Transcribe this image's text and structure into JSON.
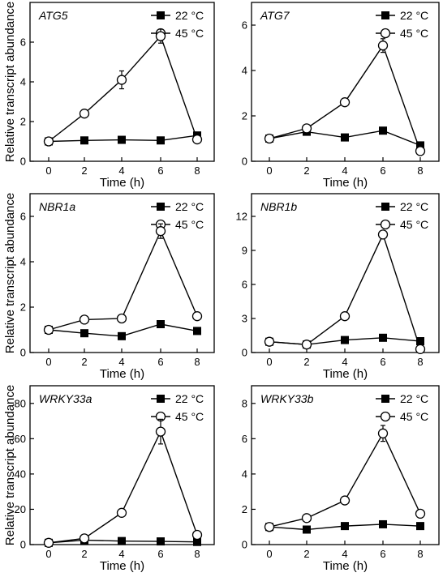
{
  "chart_data": [
    {
      "type": "line",
      "gene": "ATG5",
      "xlabel": "Time (h)",
      "ylabel": "Relative transcript abundance",
      "x": [
        0,
        2,
        4,
        6,
        8
      ],
      "xticks": [
        "0",
        "2",
        "4",
        "6",
        "8"
      ],
      "ylim": [
        0,
        8
      ],
      "yticks": [
        "0",
        "2",
        "4",
        "6"
      ],
      "ytick_values": [
        0,
        2,
        4,
        6
      ],
      "legend_position": "top-right",
      "series": [
        {
          "name": "22 °C",
          "marker": "filled-square",
          "values": [
            1.0,
            1.05,
            1.08,
            1.05,
            1.3
          ],
          "errors": [
            0.05,
            0.05,
            0.06,
            0.05,
            0.08
          ]
        },
        {
          "name": "45 °C",
          "marker": "open-circle",
          "values": [
            1.0,
            2.4,
            4.1,
            6.3,
            1.1
          ],
          "errors": [
            0.08,
            0.1,
            0.45,
            0.35,
            0.1
          ]
        }
      ]
    },
    {
      "type": "line",
      "gene": "ATG7",
      "xlabel": "Time (h)",
      "ylabel": "",
      "x": [
        0,
        2,
        4,
        6,
        8
      ],
      "xticks": [
        "0",
        "2",
        "4",
        "6",
        "8"
      ],
      "ylim": [
        0,
        7
      ],
      "yticks": [
        "0",
        "2",
        "4",
        "6"
      ],
      "ytick_values": [
        0,
        2,
        4,
        6
      ],
      "legend_position": "top-right",
      "series": [
        {
          "name": "22 °C",
          "marker": "filled-square",
          "values": [
            1.0,
            1.3,
            1.05,
            1.35,
            0.7
          ],
          "errors": [
            0.05,
            0.06,
            0.05,
            0.06,
            0.05
          ]
        },
        {
          "name": "45 °C",
          "marker": "open-circle",
          "values": [
            1.0,
            1.45,
            2.6,
            5.1,
            0.45
          ],
          "errors": [
            0.08,
            0.08,
            0.12,
            0.3,
            0.05
          ]
        }
      ]
    },
    {
      "type": "line",
      "gene": "NBR1a",
      "xlabel": "Time (h)",
      "ylabel": "Relative transcript abundance",
      "x": [
        0,
        2,
        4,
        6,
        8
      ],
      "xticks": [
        "0",
        "2",
        "4",
        "6",
        "8"
      ],
      "ylim": [
        0,
        7
      ],
      "yticks": [
        "0",
        "2",
        "4",
        "6"
      ],
      "ytick_values": [
        0,
        2,
        4,
        6
      ],
      "legend_position": "top-right",
      "series": [
        {
          "name": "22 °C",
          "marker": "filled-square",
          "values": [
            1.0,
            0.85,
            0.72,
            1.25,
            0.95
          ],
          "errors": [
            0.05,
            0.05,
            0.05,
            0.06,
            0.05
          ]
        },
        {
          "name": "45 °C",
          "marker": "open-circle",
          "values": [
            1.0,
            1.45,
            1.5,
            5.35,
            1.6
          ],
          "errors": [
            0.08,
            0.1,
            0.08,
            0.32,
            0.12
          ]
        }
      ]
    },
    {
      "type": "line",
      "gene": "NBR1b",
      "xlabel": "Time (h)",
      "ylabel": "",
      "x": [
        0,
        2,
        4,
        6,
        8
      ],
      "xticks": [
        "0",
        "2",
        "4",
        "6",
        "8"
      ],
      "ylim": [
        0,
        14
      ],
      "yticks": [
        "0",
        "3",
        "6",
        "9",
        "12"
      ],
      "ytick_values": [
        0,
        3,
        6,
        9,
        12
      ],
      "legend_position": "top-right",
      "series": [
        {
          "name": "22 °C",
          "marker": "filled-square",
          "values": [
            0.95,
            0.7,
            1.1,
            1.3,
            1.0
          ],
          "errors": [
            0.08,
            0.05,
            0.06,
            0.06,
            0.06
          ]
        },
        {
          "name": "45 °C",
          "marker": "open-circle",
          "values": [
            0.95,
            0.7,
            3.2,
            10.4,
            0.3
          ],
          "errors": [
            0.12,
            0.1,
            0.3,
            0.25,
            0.08
          ]
        }
      ]
    },
    {
      "type": "line",
      "gene": "WRKY33a",
      "xlabel": "Time (h)",
      "ylabel": "Relative transcript abundance",
      "x": [
        0,
        2,
        4,
        6,
        8
      ],
      "xticks": [
        "0",
        "2",
        "4",
        "6",
        "8"
      ],
      "ylim": [
        0,
        90
      ],
      "yticks": [
        "0",
        "20",
        "40",
        "60",
        "80"
      ],
      "ytick_values": [
        0,
        20,
        40,
        60,
        80
      ],
      "legend_position": "top-right",
      "series": [
        {
          "name": "22 °C",
          "marker": "filled-square",
          "values": [
            1.0,
            2.5,
            2.0,
            1.8,
            1.5
          ],
          "errors": [
            0.3,
            0.5,
            0.3,
            0.3,
            0.3
          ]
        },
        {
          "name": "45 °C",
          "marker": "open-circle",
          "values": [
            1.0,
            3.5,
            18.0,
            64.0,
            5.5
          ],
          "errors": [
            0.5,
            1.0,
            1.2,
            7.0,
            1.2
          ]
        }
      ]
    },
    {
      "type": "line",
      "gene": "WRKY33b",
      "xlabel": "Time (h)",
      "ylabel": "",
      "x": [
        0,
        2,
        4,
        6,
        8
      ],
      "xticks": [
        "0",
        "2",
        "4",
        "6",
        "8"
      ],
      "ylim": [
        0,
        9
      ],
      "yticks": [
        "0",
        "2",
        "4",
        "6",
        "8"
      ],
      "ytick_values": [
        0,
        2,
        4,
        6,
        8
      ],
      "legend_position": "top-right",
      "series": [
        {
          "name": "22 °C",
          "marker": "filled-square",
          "values": [
            1.0,
            0.85,
            1.05,
            1.15,
            1.05
          ],
          "errors": [
            0.05,
            0.05,
            0.06,
            0.05,
            0.05
          ]
        },
        {
          "name": "45 °C",
          "marker": "open-circle",
          "values": [
            1.0,
            1.5,
            2.5,
            6.3,
            1.75
          ],
          "errors": [
            0.1,
            0.12,
            0.15,
            0.45,
            0.15
          ]
        }
      ]
    }
  ]
}
